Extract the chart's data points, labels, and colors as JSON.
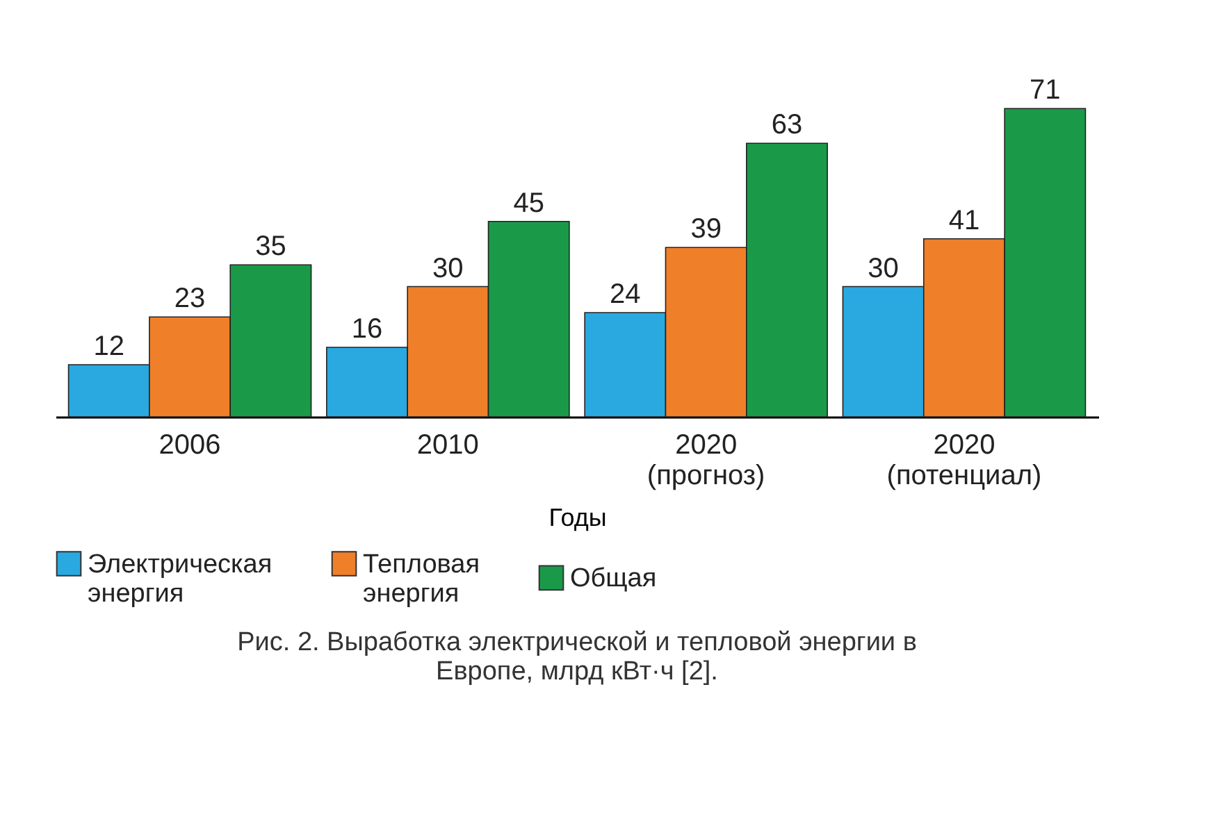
{
  "chart_data": {
    "type": "bar",
    "xlabel": "Годы",
    "categories": [
      "2006",
      "2010",
      "2020 (прогноз)",
      "2020 (потенциал)"
    ],
    "series": [
      {
        "name": "Электрическая энергия",
        "color": "#29a9e0",
        "values": [
          12,
          16,
          24,
          30
        ]
      },
      {
        "name": "Тепловая энергия",
        "color": "#f07f2a",
        "values": [
          23,
          30,
          39,
          41
        ]
      },
      {
        "name": "Общая",
        "color": "#1a9a48",
        "values": [
          35,
          45,
          63,
          71
        ]
      }
    ],
    "data_labels": true,
    "legend": "bottom",
    "grid": false,
    "annotations": [
      "Рис. 2. Выработка электрической и тепловой энергии в Европе, млрд кВт·ч [2]."
    ]
  }
}
